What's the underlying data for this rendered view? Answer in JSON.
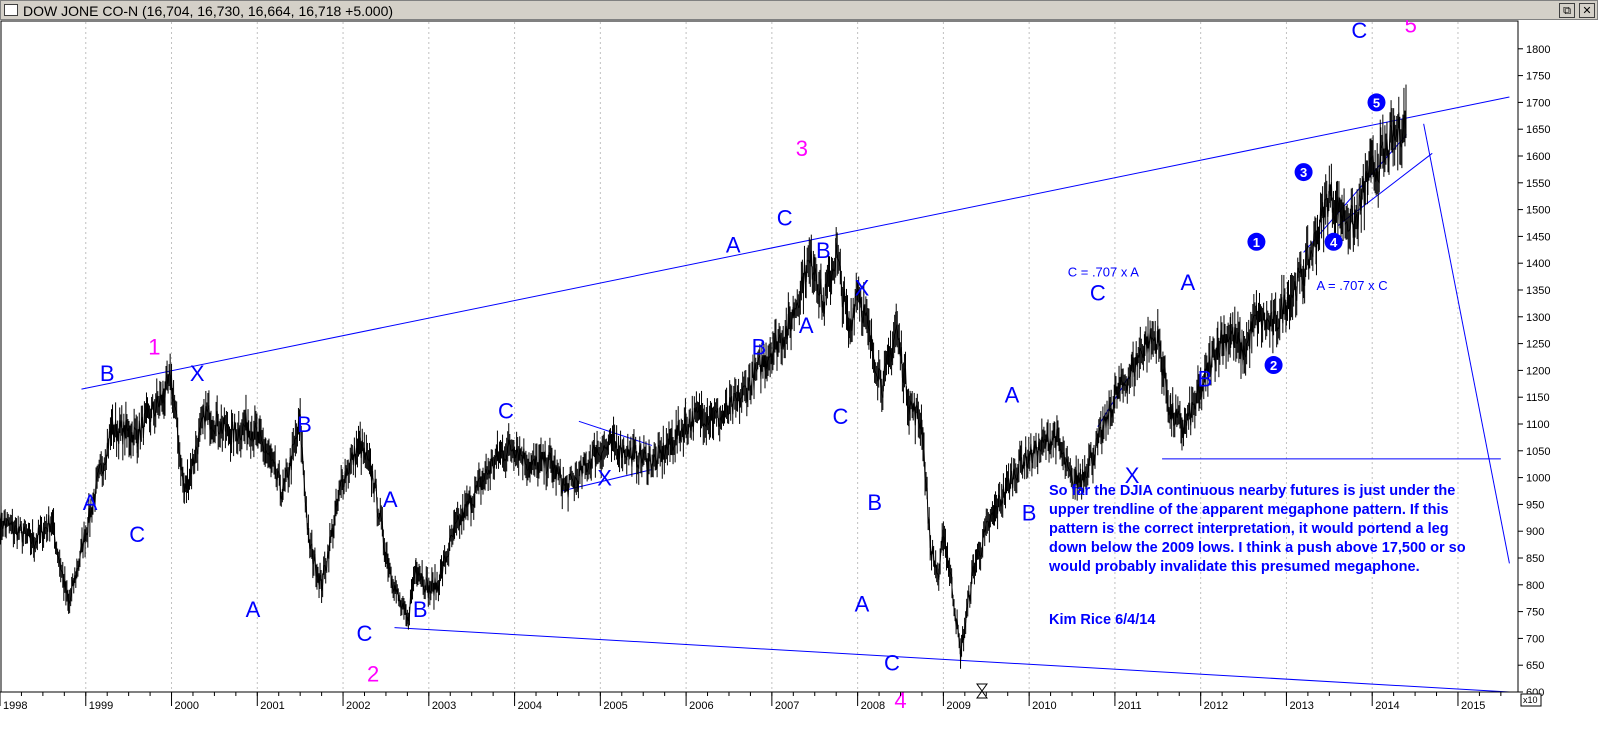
{
  "window": {
    "title": "DOW JONE CO-N",
    "quote": "(16,704, 16,730, 16,664, 16,718 +5.000)",
    "restore_glyph": "⧉",
    "close_glyph": "✕",
    "scale_badge": "x10"
  },
  "colors": {
    "price": "#000000",
    "wave_label": "#0000ff",
    "major_wave": "#ff00ff",
    "trendline": "#0000ff",
    "grid": "#c0c0c0"
  },
  "chart_data": {
    "type": "line",
    "title": "",
    "xlabel": "",
    "ylabel": "",
    "ylim": [
      600,
      1850
    ],
    "xlim": [
      1998.0,
      2015.7
    ],
    "y_unit_multiplier": "x10",
    "grid": "vertical dotted at year starts",
    "y_ticks": [
      600,
      650,
      700,
      750,
      800,
      850,
      900,
      950,
      1000,
      1050,
      1100,
      1150,
      1200,
      1250,
      1300,
      1350,
      1400,
      1450,
      1500,
      1550,
      1600,
      1650,
      1700,
      1750,
      1800
    ],
    "x_ticks": [
      "1998",
      "1999",
      "2000",
      "2001",
      "2002",
      "2003",
      "2004",
      "2005",
      "2006",
      "2007",
      "2008",
      "2009",
      "2010",
      "2011",
      "2012",
      "2013",
      "2014",
      "2015"
    ],
    "price_series": {
      "name": "",
      "x": [
        1998.0,
        1998.2,
        1998.4,
        1998.6,
        1998.8,
        1999.0,
        1999.3,
        1999.6,
        1999.9,
        2000.0,
        2000.15,
        2000.4,
        2000.7,
        2000.9,
        2001.1,
        2001.3,
        2001.5,
        2001.6,
        2001.75,
        2002.0,
        2002.2,
        2002.35,
        2002.5,
        2002.65,
        2002.75,
        2002.85,
        2003.0,
        2003.1,
        2003.3,
        2003.5,
        2003.8,
        2004.0,
        2004.2,
        2004.4,
        2004.6,
        2004.75,
        2004.95,
        2005.2,
        2005.4,
        2005.65,
        2005.8,
        2006.0,
        2006.2,
        2006.4,
        2006.6,
        2006.8,
        2007.0,
        2007.2,
        2007.4,
        2007.5,
        2007.6,
        2007.75,
        2007.9,
        2008.0,
        2008.15,
        2008.3,
        2008.45,
        2008.6,
        2008.75,
        2008.85,
        2008.95,
        2009.0,
        2009.1,
        2009.2,
        2009.35,
        2009.5,
        2009.7,
        2009.9,
        2010.1,
        2010.3,
        2010.5,
        2010.6,
        2010.8,
        2011.0,
        2011.2,
        2011.35,
        2011.5,
        2011.65,
        2011.8,
        2012.0,
        2012.2,
        2012.35,
        2012.5,
        2012.65,
        2012.85,
        2013.0,
        2013.2,
        2013.35,
        2013.5,
        2013.6,
        2013.8,
        2013.95,
        2014.1,
        2014.25,
        2014.4
      ],
      "y": [
        920,
        900,
        880,
        920,
        760,
        900,
        1090,
        1080,
        1150,
        1180,
        970,
        1120,
        1080,
        1100,
        1050,
        970,
        1100,
        880,
        800,
        1000,
        1060,
        1000,
        860,
        770,
        730,
        840,
        790,
        800,
        900,
        960,
        1040,
        1060,
        1020,
        1030,
        980,
        1000,
        1050,
        1060,
        1040,
        1030,
        1060,
        1100,
        1120,
        1110,
        1140,
        1190,
        1240,
        1280,
        1390,
        1400,
        1320,
        1420,
        1270,
        1360,
        1250,
        1170,
        1280,
        1140,
        1100,
        870,
        810,
        900,
        800,
        670,
        830,
        900,
        970,
        1030,
        1050,
        1080,
        990,
        1000,
        1060,
        1150,
        1200,
        1250,
        1260,
        1120,
        1090,
        1160,
        1250,
        1270,
        1230,
        1300,
        1280,
        1330,
        1380,
        1450,
        1530,
        1500,
        1470,
        1560,
        1590,
        1630,
        1670
      ]
    },
    "trendlines": [
      {
        "name": "upper megaphone",
        "x": [
          1998.95,
          2015.6
        ],
        "y": [
          1165,
          1710
        ]
      },
      {
        "name": "lower megaphone",
        "x": [
          2002.6,
          2015.6
        ],
        "y": [
          720,
          600
        ]
      },
      {
        "name": "projection",
        "x": [
          2014.6,
          2015.6
        ],
        "y": [
          1660,
          840
        ]
      },
      {
        "name": "2011 low line",
        "x": [
          2011.55,
          2015.5
        ],
        "y": [
          1035,
          1035
        ]
      },
      {
        "name": "2005 triangle upper",
        "x": [
          2004.75,
          2005.6
        ],
        "y": [
          1105,
          1060
        ]
      },
      {
        "name": "2005 triangle lower",
        "x": [
          2004.55,
          2005.6
        ],
        "y": [
          975,
          1015
        ]
      },
      {
        "name": "2010 channel",
        "x": [
          2010.8,
          2011.15
        ],
        "y": [
          1095,
          1185
        ]
      },
      {
        "name": "2014 wedge upper",
        "x": [
          2013.2,
          2014.4
        ],
        "y": [
          1420,
          1640
        ]
      },
      {
        "name": "2014 wedge lower",
        "x": [
          2013.6,
          2014.7
        ],
        "y": [
          1470,
          1605
        ]
      }
    ],
    "annotations": [
      {
        "text": "1",
        "x": 1999.8,
        "y": 1230,
        "color": "magenta"
      },
      {
        "text": "2",
        "x": 2002.35,
        "y": 620,
        "color": "magenta"
      },
      {
        "text": "3",
        "x": 2007.35,
        "y": 1600,
        "color": "magenta"
      },
      {
        "text": "4",
        "x": 2008.5,
        "y": 570,
        "color": "magenta"
      },
      {
        "text": "5",
        "x": 2014.45,
        "y": 1830,
        "color": "magenta"
      },
      {
        "text": "A",
        "x": 1999.05,
        "y": 940,
        "color": "blue"
      },
      {
        "text": "B",
        "x": 1999.25,
        "y": 1180,
        "color": "blue"
      },
      {
        "text": "X",
        "x": 2000.3,
        "y": 1180,
        "color": "blue"
      },
      {
        "text": "C",
        "x": 1999.6,
        "y": 880,
        "color": "blue"
      },
      {
        "text": "A",
        "x": 2000.95,
        "y": 740,
        "color": "blue"
      },
      {
        "text": "B",
        "x": 2001.55,
        "y": 1085,
        "color": "blue"
      },
      {
        "text": "C",
        "x": 2002.25,
        "y": 695,
        "color": "blue"
      },
      {
        "text": "A",
        "x": 2002.55,
        "y": 945,
        "color": "blue"
      },
      {
        "text": "B",
        "x": 2002.9,
        "y": 740,
        "color": "blue"
      },
      {
        "text": "C",
        "x": 2003.9,
        "y": 1110,
        "color": "blue"
      },
      {
        "text": "X",
        "x": 2005.05,
        "y": 985,
        "color": "blue"
      },
      {
        "text": "A",
        "x": 2006.55,
        "y": 1420,
        "color": "blue"
      },
      {
        "text": "B",
        "x": 2006.85,
        "y": 1230,
        "color": "blue"
      },
      {
        "text": "C",
        "x": 2007.15,
        "y": 1470,
        "color": "blue"
      },
      {
        "text": "A",
        "x": 2007.4,
        "y": 1270,
        "color": "blue"
      },
      {
        "text": "B",
        "x": 2007.6,
        "y": 1410,
        "color": "blue"
      },
      {
        "text": "C",
        "x": 2007.8,
        "y": 1100,
        "color": "blue"
      },
      {
        "text": "X",
        "x": 2008.05,
        "y": 1340,
        "color": "blue"
      },
      {
        "text": "B",
        "x": 2008.2,
        "y": 940,
        "color": "blue"
      },
      {
        "text": "A",
        "x": 2008.05,
        "y": 750,
        "color": "blue"
      },
      {
        "text": "C",
        "x": 2008.4,
        "y": 640,
        "color": "blue"
      },
      {
        "text": "A",
        "x": 2009.8,
        "y": 1140,
        "color": "blue"
      },
      {
        "text": "B",
        "x": 2010.0,
        "y": 920,
        "color": "blue"
      },
      {
        "text": "C",
        "x": 2010.8,
        "y": 1330,
        "color": "blue"
      },
      {
        "text": "X",
        "x": 2011.2,
        "y": 990,
        "color": "blue"
      },
      {
        "text": "A",
        "x": 2011.85,
        "y": 1350,
        "color": "blue"
      },
      {
        "text": "B",
        "x": 2012.05,
        "y": 1170,
        "color": "blue"
      },
      {
        "text": "C",
        "x": 2013.85,
        "y": 1820,
        "color": "blue"
      }
    ],
    "circled_labels": [
      {
        "text": "1",
        "x": 2012.65,
        "y": 1440
      },
      {
        "text": "2",
        "x": 2012.85,
        "y": 1210
      },
      {
        "text": "3",
        "x": 2013.2,
        "y": 1570
      },
      {
        "text": "4",
        "x": 2013.55,
        "y": 1440
      },
      {
        "text": "5",
        "x": 2014.05,
        "y": 1700
      }
    ],
    "formulas": [
      {
        "text": "C = .707 x A",
        "x": 2010.45,
        "y": 1375
      },
      {
        "text": "A = .707 x C",
        "x": 2013.35,
        "y": 1350
      }
    ],
    "note": "So far the DJIA continuous nearby futures is just under the upper trendline of the apparent megaphone pattern. If this pattern is the correct interpretation, it would portend a leg down below the 2009 lows. I think a push above 17,500 or so would probably invalidate this presumed megaphone.",
    "signature": "Kim Rice   6/4/14"
  }
}
